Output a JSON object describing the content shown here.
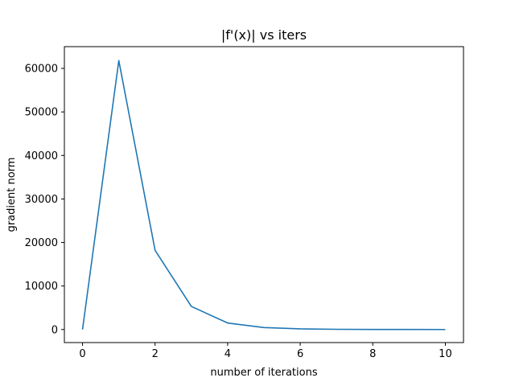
{
  "chart_data": {
    "type": "line",
    "title": "|f'(x)| vs iters",
    "xlabel": "number of iterations",
    "ylabel": "gradient norm",
    "xlim": [
      -0.5,
      10.5
    ],
    "ylim": [
      -3000,
      65000
    ],
    "xticks": [
      0,
      2,
      4,
      6,
      8,
      10
    ],
    "yticks": [
      0,
      10000,
      20000,
      30000,
      40000,
      50000,
      60000
    ],
    "grid": false,
    "series": [
      {
        "color": "#1f77b4",
        "x": [
          0,
          1,
          2,
          3,
          4,
          5,
          6,
          7,
          8,
          9,
          10
        ],
        "y": [
          0,
          61800,
          18200,
          5300,
          1500,
          450,
          150,
          50,
          20,
          10,
          5
        ]
      }
    ]
  }
}
